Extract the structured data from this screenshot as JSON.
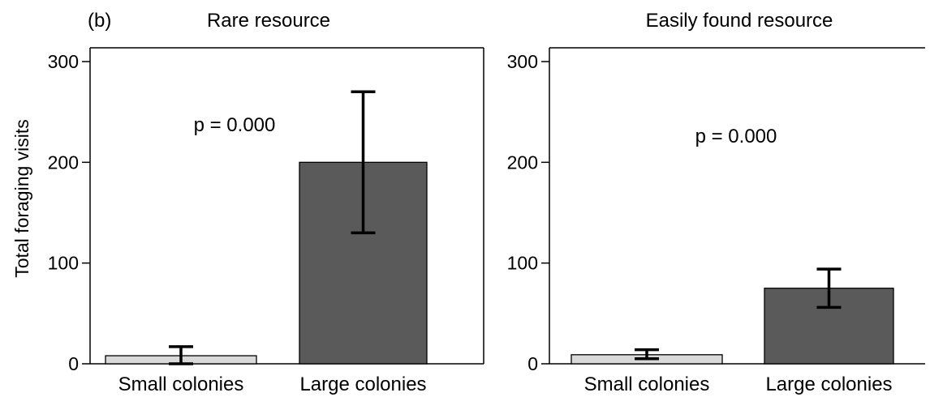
{
  "figure": {
    "panel_label": "(b)",
    "ylabel": "Total foraging visits"
  },
  "chart_data": [
    {
      "type": "bar",
      "title": "Rare resource",
      "xlabel": "",
      "ylabel": "Total foraging visits",
      "categories": [
        "Small colonies",
        "Large colonies"
      ],
      "values": [
        8,
        200
      ],
      "errors": [
        [
          0,
          17
        ],
        [
          130,
          270
        ]
      ],
      "bar_colors": [
        "#d9d9d9",
        "#5a5a5a"
      ],
      "ylim": [
        0,
        300
      ],
      "yticks": [
        "0",
        "100",
        "200",
        "300"
      ],
      "annotation": "p = 0.000",
      "grid": false
    },
    {
      "type": "bar",
      "title": "Easily found resource",
      "xlabel": "",
      "ylabel": "",
      "categories": [
        "Small colonies",
        "Large colonies"
      ],
      "values": [
        9,
        75
      ],
      "errors": [
        [
          5,
          14
        ],
        [
          56,
          94
        ]
      ],
      "bar_colors": [
        "#d9d9d9",
        "#5a5a5a"
      ],
      "ylim": [
        0,
        300
      ],
      "yticks": [
        "0",
        "100",
        "200",
        "300"
      ],
      "annotation": "p = 0.000",
      "grid": false
    }
  ]
}
